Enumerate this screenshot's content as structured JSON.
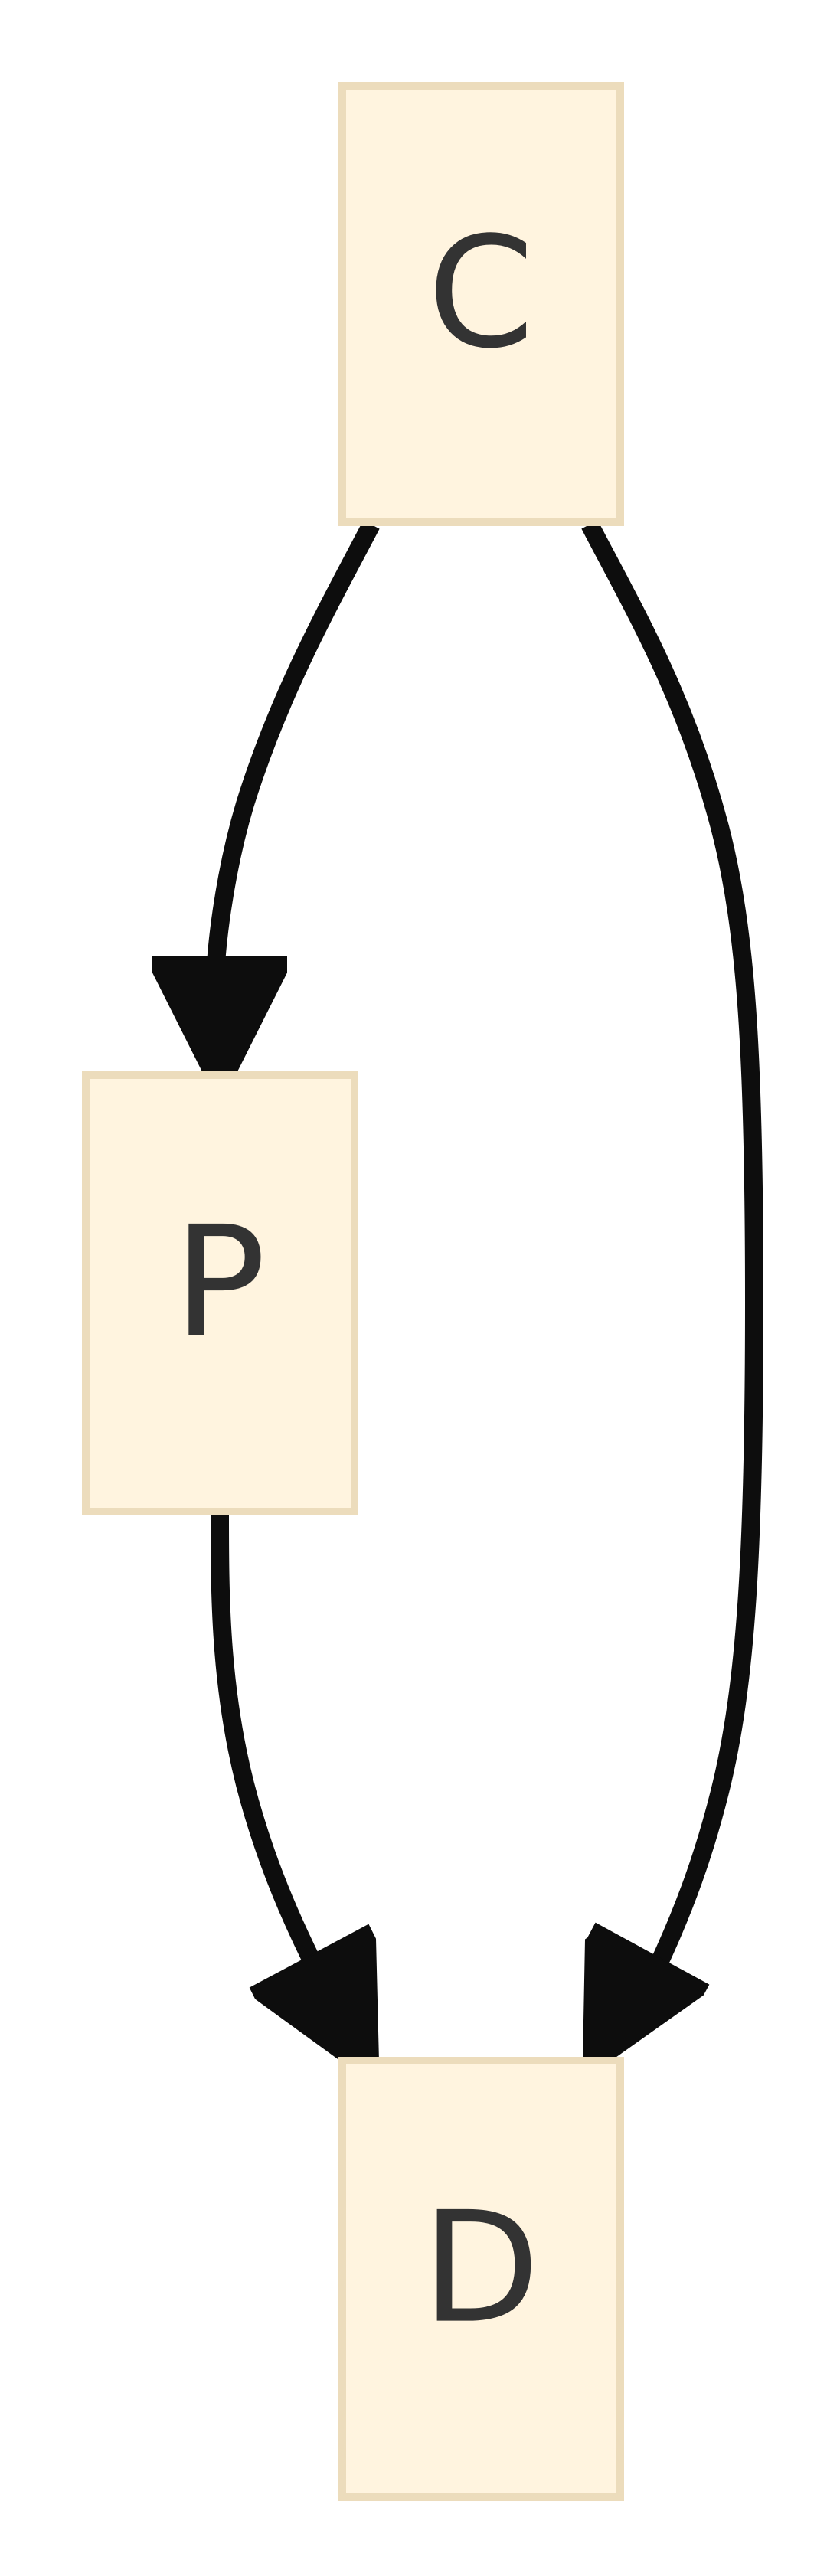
{
  "diagram": {
    "type": "directed-graph",
    "nodes": [
      {
        "id": "C",
        "label": "C"
      },
      {
        "id": "P",
        "label": "P"
      },
      {
        "id": "D",
        "label": "D"
      }
    ],
    "edges": [
      {
        "from": "C",
        "to": "P"
      },
      {
        "from": "C",
        "to": "D"
      },
      {
        "from": "P",
        "to": "D"
      }
    ],
    "colors": {
      "node_fill": "#fff4df",
      "node_border": "#ecdcbc",
      "label_text": "#333333",
      "edge": "#0d0d0d",
      "background": "#ffffff"
    }
  }
}
